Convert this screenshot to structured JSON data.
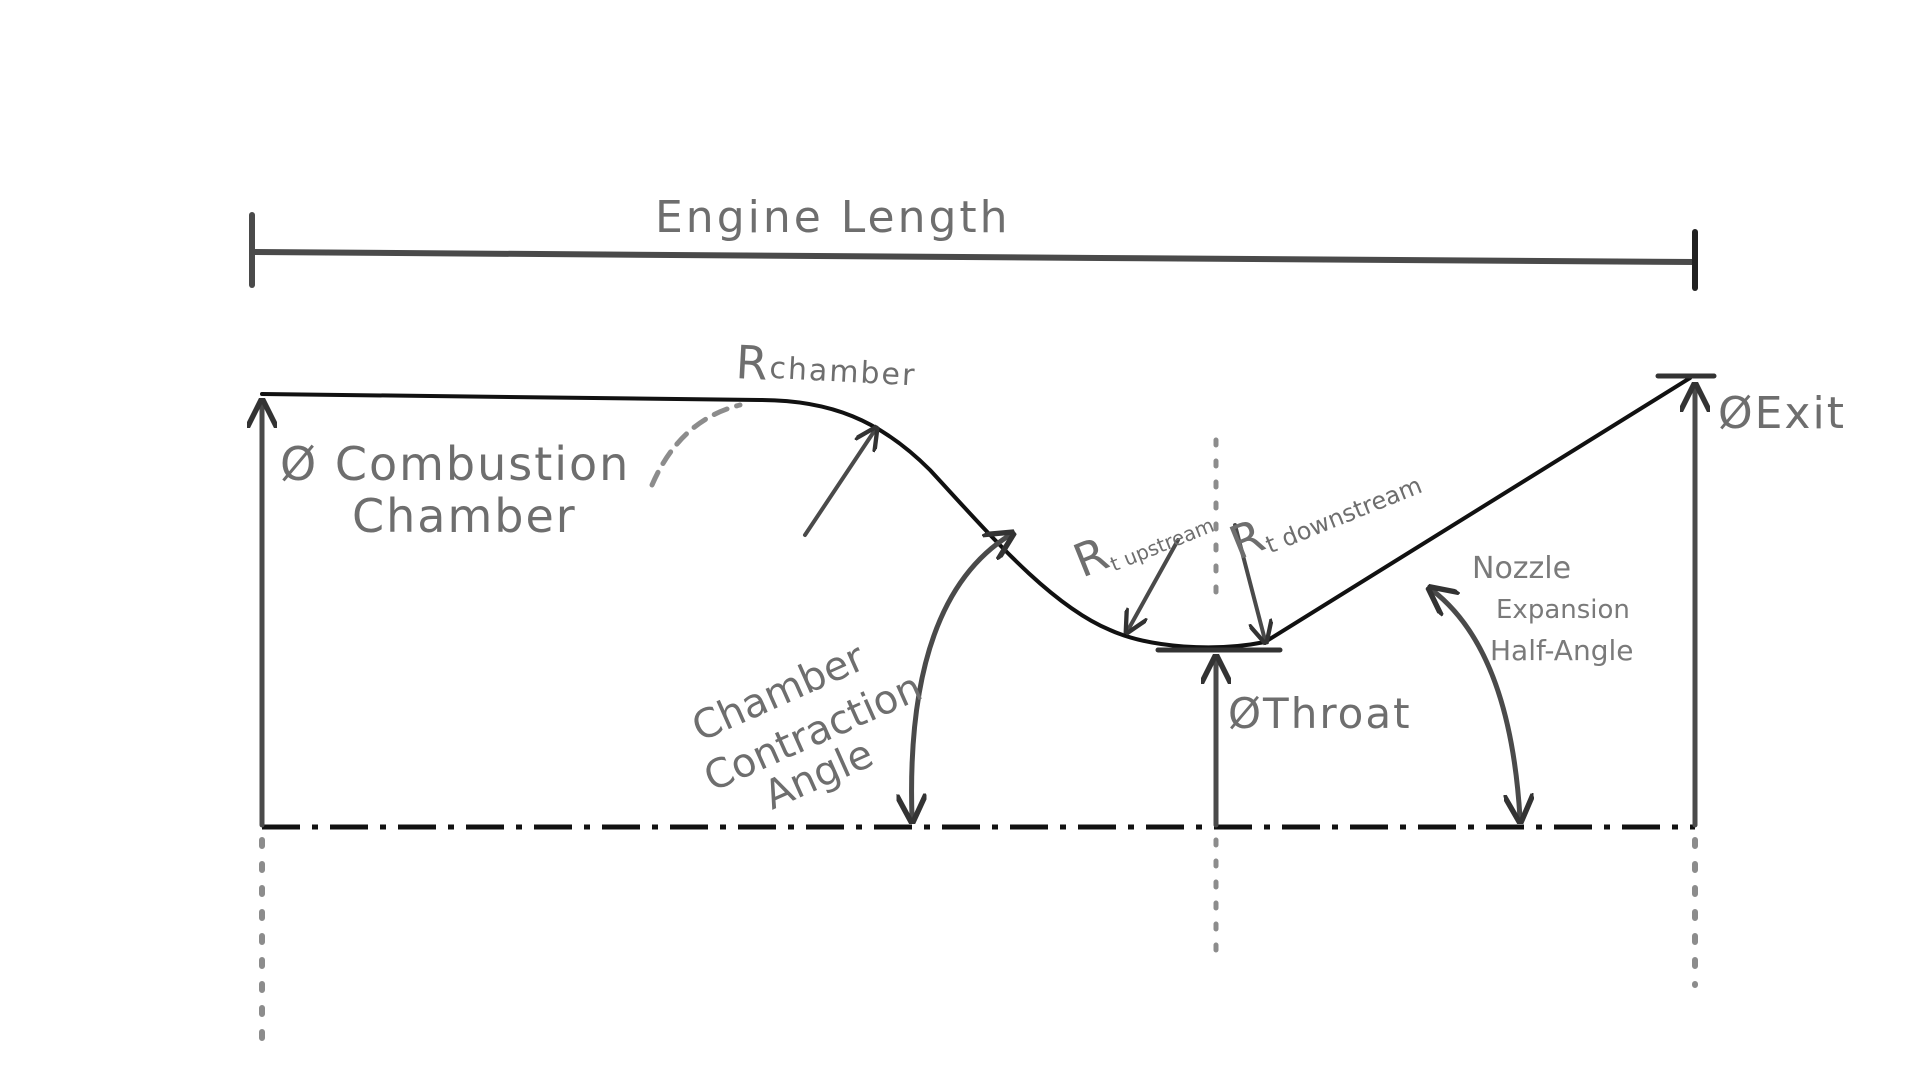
{
  "labels": {
    "engine_length": "Engine Length",
    "r_chamber_main": "R",
    "r_chamber_sub": "chamber",
    "combustion_line1": "Ø Combustion",
    "combustion_line2": "Chamber",
    "rt_upstream_main": "R",
    "rt_upstream_sub": "t upstream",
    "rt_downstream_main": "R",
    "rt_downstream_sub": "t downstream",
    "exit": "ØExit",
    "throat": "ØThroat",
    "nozzle_line1": "Nozzle",
    "nozzle_line2": "Expansion",
    "nozzle_line3": "Half-Angle",
    "contraction_line1": "Chamber",
    "contraction_line2": "Contraction",
    "contraction_line3": "Angle"
  },
  "colors": {
    "contour": "#111111",
    "annotation": "#4a4a4a",
    "text": "#6e6e6e",
    "centerline_dots": "#8c8c8c"
  }
}
